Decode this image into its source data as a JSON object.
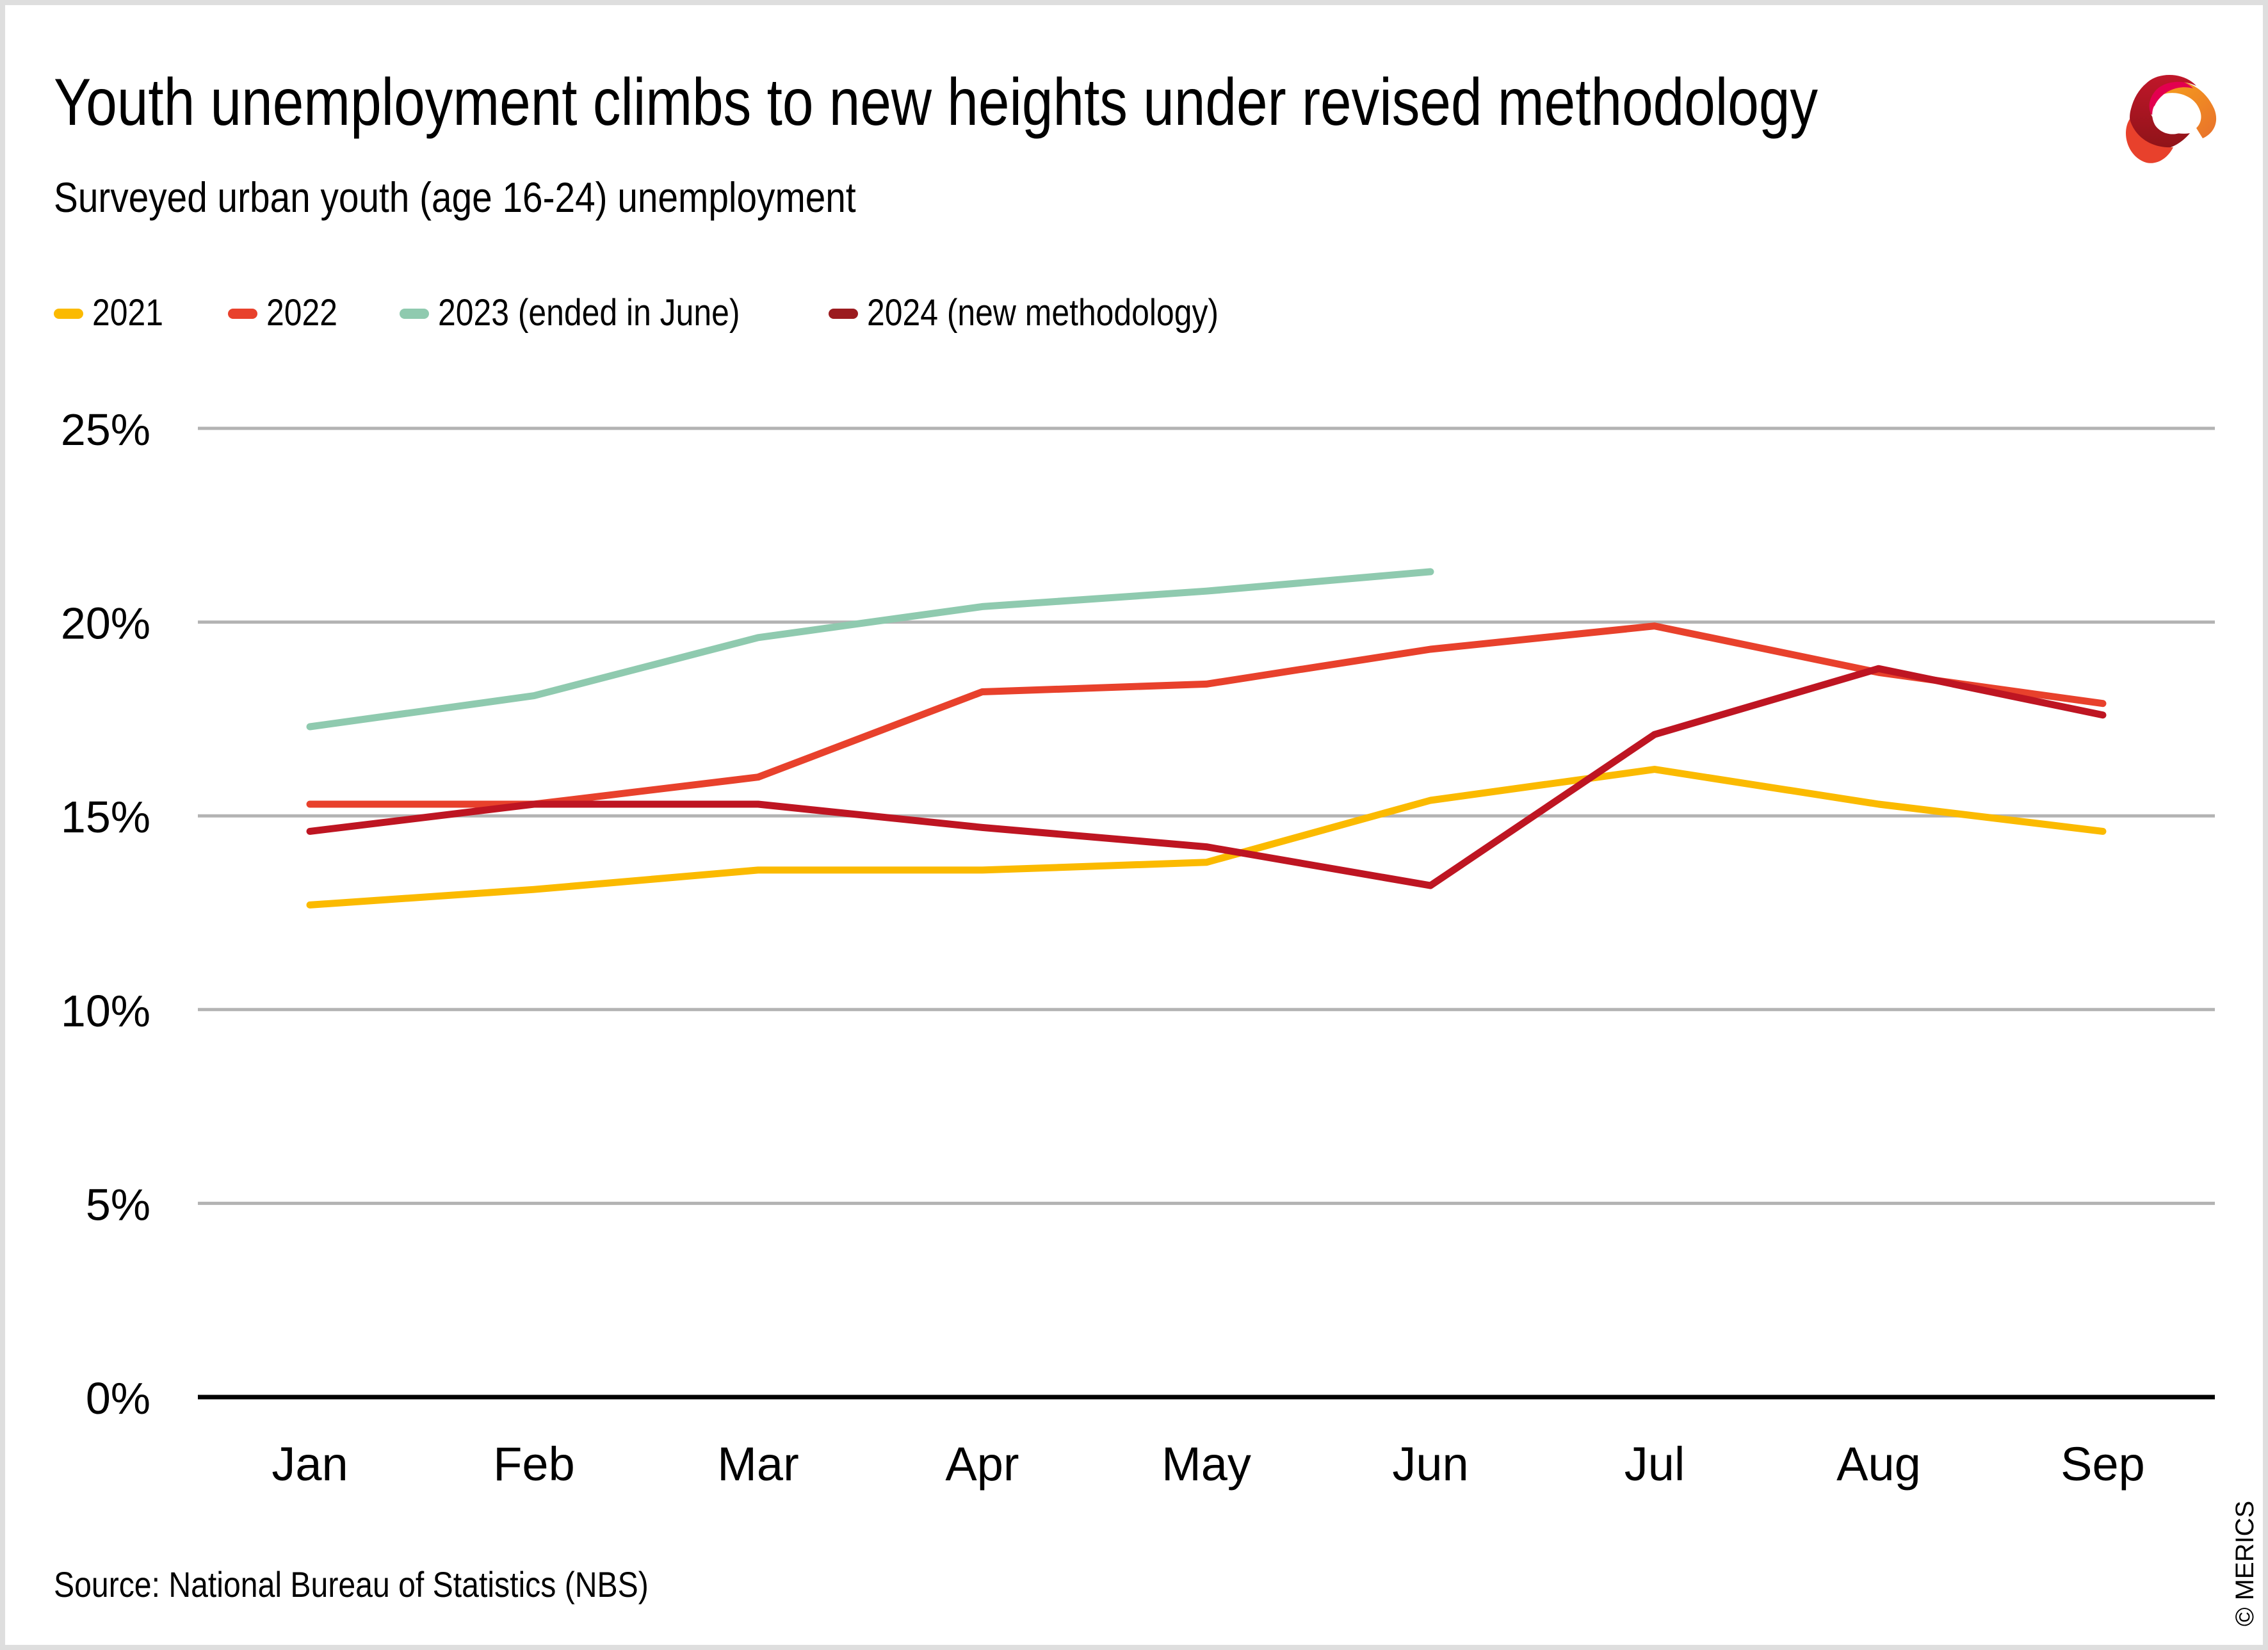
{
  "header": {
    "title": "Youth unemployment climbs to new heights under revised methodology",
    "subtitle": "Surveyed urban youth (age 16-24) unemployment",
    "logo": "merics-ribbon-logo-icon"
  },
  "legend": [
    {
      "label": "2021",
      "color": "#FBBA00"
    },
    {
      "label": "2022",
      "color": "#E8412C"
    },
    {
      "label": "2023 (ended in June)",
      "color": "#8FCAAF"
    },
    {
      "label": "2024 (new methodology)",
      "color": "#9B1B1F"
    }
  ],
  "footer": {
    "source": "Source: National Bureau of Statistics (NBS)",
    "copyright": "© MERICS"
  },
  "colors": {
    "gridline": "#B3B3B3",
    "baseline": "#000000"
  },
  "chart_data": {
    "type": "line",
    "title": "Youth unemployment climbs to new heights under revised methodology",
    "subtitle": "Surveyed urban youth (age 16-24) unemployment",
    "xlabel": "",
    "ylabel": "",
    "categories": [
      "Jan",
      "Feb",
      "Mar",
      "Apr",
      "May",
      "Jun",
      "Jul",
      "Aug",
      "Sep"
    ],
    "ylim": [
      0,
      25
    ],
    "yticks": [
      0,
      5,
      10,
      15,
      20,
      25
    ],
    "ytick_labels": [
      "0%",
      "5%",
      "10%",
      "15%",
      "20%",
      "25%"
    ],
    "grid": true,
    "legend_position": "top-left",
    "series": [
      {
        "name": "2021",
        "color": "#FBBA00",
        "values": [
          12.7,
          13.1,
          13.6,
          13.6,
          13.8,
          15.4,
          16.2,
          15.3,
          14.6
        ]
      },
      {
        "name": "2022",
        "color": "#E8412C",
        "values": [
          15.3,
          15.3,
          16.0,
          18.2,
          18.4,
          19.3,
          19.9,
          18.7,
          17.9
        ]
      },
      {
        "name": "2023 (ended in June)",
        "color": "#8FCAAF",
        "values": [
          17.3,
          18.1,
          19.6,
          20.4,
          20.8,
          21.3,
          null,
          null,
          null
        ]
      },
      {
        "name": "2024 (new methodology)",
        "color": "#BE1522",
        "values": [
          14.6,
          15.3,
          15.3,
          14.7,
          14.2,
          13.2,
          17.1,
          18.8,
          17.6
        ]
      }
    ],
    "source": "Source: National Bureau of Statistics (NBS)"
  }
}
